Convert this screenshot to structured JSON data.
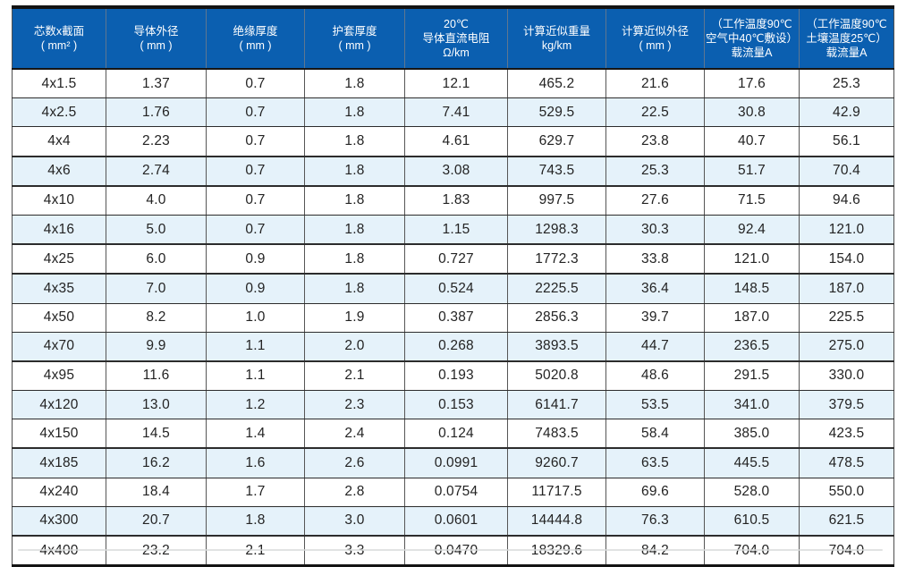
{
  "table": {
    "columns": [
      {
        "name": "core-count-x-section",
        "lines": [
          "芯数x截面",
          "( mm² )"
        ],
        "width": 105
      },
      {
        "name": "conductor-outer-diameter",
        "lines": [
          "导体外径",
          "( mm )"
        ],
        "width": 112
      },
      {
        "name": "insulation-thickness",
        "lines": [
          "绝缘厚度",
          "( mm )"
        ],
        "width": 110
      },
      {
        "name": "sheath-thickness",
        "lines": [
          "护套厚度",
          "( mm )"
        ],
        "width": 112
      },
      {
        "name": "dc-resistance-20c",
        "lines": [
          "20℃",
          "导体直流电阻",
          "Ω/km"
        ],
        "width": 115
      },
      {
        "name": "approx-weight",
        "lines": [
          "计算近似重量",
          "kg/km"
        ],
        "width": 110
      },
      {
        "name": "approx-outer-diameter",
        "lines": [
          "计算近似外径",
          "( mm )"
        ],
        "width": 110
      },
      {
        "name": "ampacity-air",
        "lines": [
          "（工作温度90℃",
          "空气中40℃敷设）",
          "载流量A"
        ],
        "width": 106
      },
      {
        "name": "ampacity-soil",
        "lines": [
          "（工作温度90℃",
          "土壤温度25℃）",
          "载流量A"
        ],
        "width": 106
      }
    ],
    "rows": [
      [
        "4x1.5",
        "1.37",
        "0.7",
        "1.8",
        "12.1",
        "465.2",
        "21.6",
        "17.6",
        "25.3"
      ],
      [
        "4x2.5",
        "1.76",
        "0.7",
        "1.8",
        "7.41",
        "529.5",
        "22.5",
        "30.8",
        "42.9"
      ],
      [
        "4x4",
        "2.23",
        "0.7",
        "1.8",
        "4.61",
        "629.7",
        "23.8",
        "40.7",
        "56.1"
      ],
      [
        "4x6",
        "2.74",
        "0.7",
        "1.8",
        "3.08",
        "743.5",
        "25.3",
        "51.7",
        "70.4"
      ],
      [
        "4x10",
        "4.0",
        "0.7",
        "1.8",
        "1.83",
        "997.5",
        "27.6",
        "71.5",
        "94.6"
      ],
      [
        "4x16",
        "5.0",
        "0.7",
        "1.8",
        "1.15",
        "1298.3",
        "30.3",
        "92.4",
        "121.0"
      ],
      [
        "4x25",
        "6.0",
        "0.9",
        "1.8",
        "0.727",
        "1772.3",
        "33.8",
        "121.0",
        "154.0"
      ],
      [
        "4x35",
        "7.0",
        "0.9",
        "1.8",
        "0.524",
        "2225.5",
        "36.4",
        "148.5",
        "187.0"
      ],
      [
        "4x50",
        "8.2",
        "1.0",
        "1.9",
        "0.387",
        "2856.3",
        "39.7",
        "187.0",
        "225.5"
      ],
      [
        "4x70",
        "9.9",
        "1.1",
        "2.0",
        "0.268",
        "3893.5",
        "44.7",
        "236.5",
        "275.0"
      ],
      [
        "4x95",
        "11.6",
        "1.1",
        "2.1",
        "0.193",
        "5020.8",
        "48.6",
        "291.5",
        "330.0"
      ],
      [
        "4x120",
        "13.0",
        "1.2",
        "2.3",
        "0.153",
        "6141.7",
        "53.5",
        "341.0",
        "379.5"
      ],
      [
        "4x150",
        "14.5",
        "1.4",
        "2.4",
        "0.124",
        "7483.5",
        "58.4",
        "385.0",
        "423.5"
      ],
      [
        "4x185",
        "16.2",
        "1.6",
        "2.6",
        "0.0991",
        "9260.7",
        "63.5",
        "445.5",
        "478.5"
      ],
      [
        "4x240",
        "18.4",
        "1.7",
        "2.8",
        "0.0754",
        "11717.5",
        "69.6",
        "528.0",
        "550.0"
      ],
      [
        "4x300",
        "20.7",
        "1.8",
        "3.0",
        "0.0601",
        "14444.8",
        "76.3",
        "610.5",
        "621.5"
      ],
      [
        "4x400",
        "23.2",
        "2.1",
        "3.3",
        "0.0470",
        "18329.6",
        "84.2",
        "704.0",
        "704.0"
      ]
    ]
  },
  "style": {
    "header_bg": "#0b5fb0",
    "header_text": "#ffffff",
    "stripe_bg": "#e5f2fa",
    "border_dark": "#131313"
  },
  "layout": {
    "striped_row_indices": [
      1,
      3,
      5,
      7,
      9,
      11,
      13,
      15
    ],
    "thick_divider_after_rows": [
      2,
      3,
      5,
      6,
      9,
      12,
      15
    ]
  }
}
